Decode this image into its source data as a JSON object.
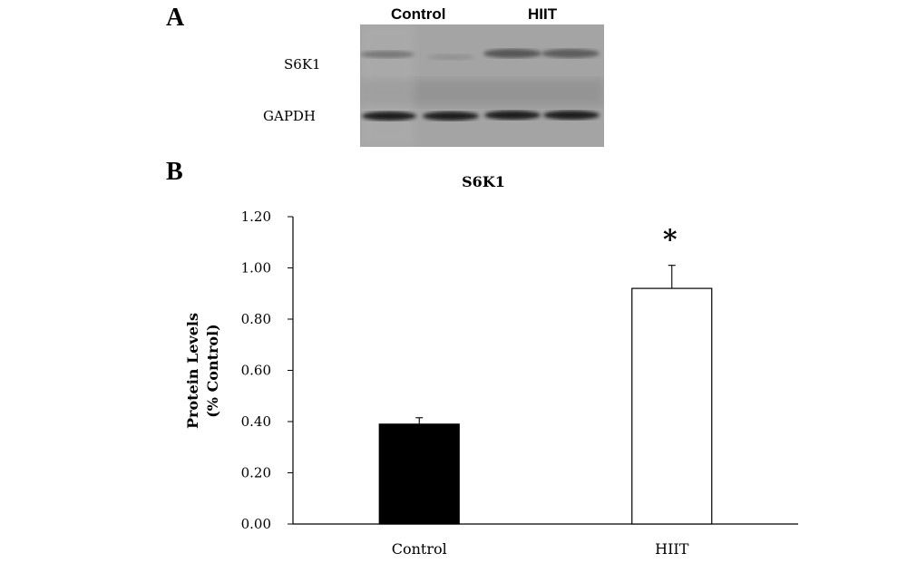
{
  "panel_a": {
    "label": "A",
    "lane_headers": [
      "Control",
      "HIIT"
    ],
    "row_labels": [
      "S6K1",
      "GAPDH"
    ]
  },
  "panel_b": {
    "label": "B"
  },
  "colors": {
    "control_bar": "#000000",
    "hiit_bar": "#ffffff",
    "axis": "#000000"
  },
  "chart_data": {
    "type": "bar",
    "title": "S6K1",
    "xlabel": "",
    "ylabel": "Protein Levels (% Control)",
    "ylabel_lines": [
      "Protein Levels",
      "(% Control)"
    ],
    "categories": [
      "Control",
      "HIIT"
    ],
    "values": [
      0.39,
      0.92
    ],
    "error": [
      0.025,
      0.09
    ],
    "ylim": [
      0,
      1.2
    ],
    "yticks": [
      "0.00",
      "0.20",
      "0.40",
      "0.60",
      "0.80",
      "1.00",
      "1.20"
    ],
    "annotations": [
      {
        "category": "HIIT",
        "text": "*"
      }
    ],
    "grid": false,
    "legend": "none"
  }
}
